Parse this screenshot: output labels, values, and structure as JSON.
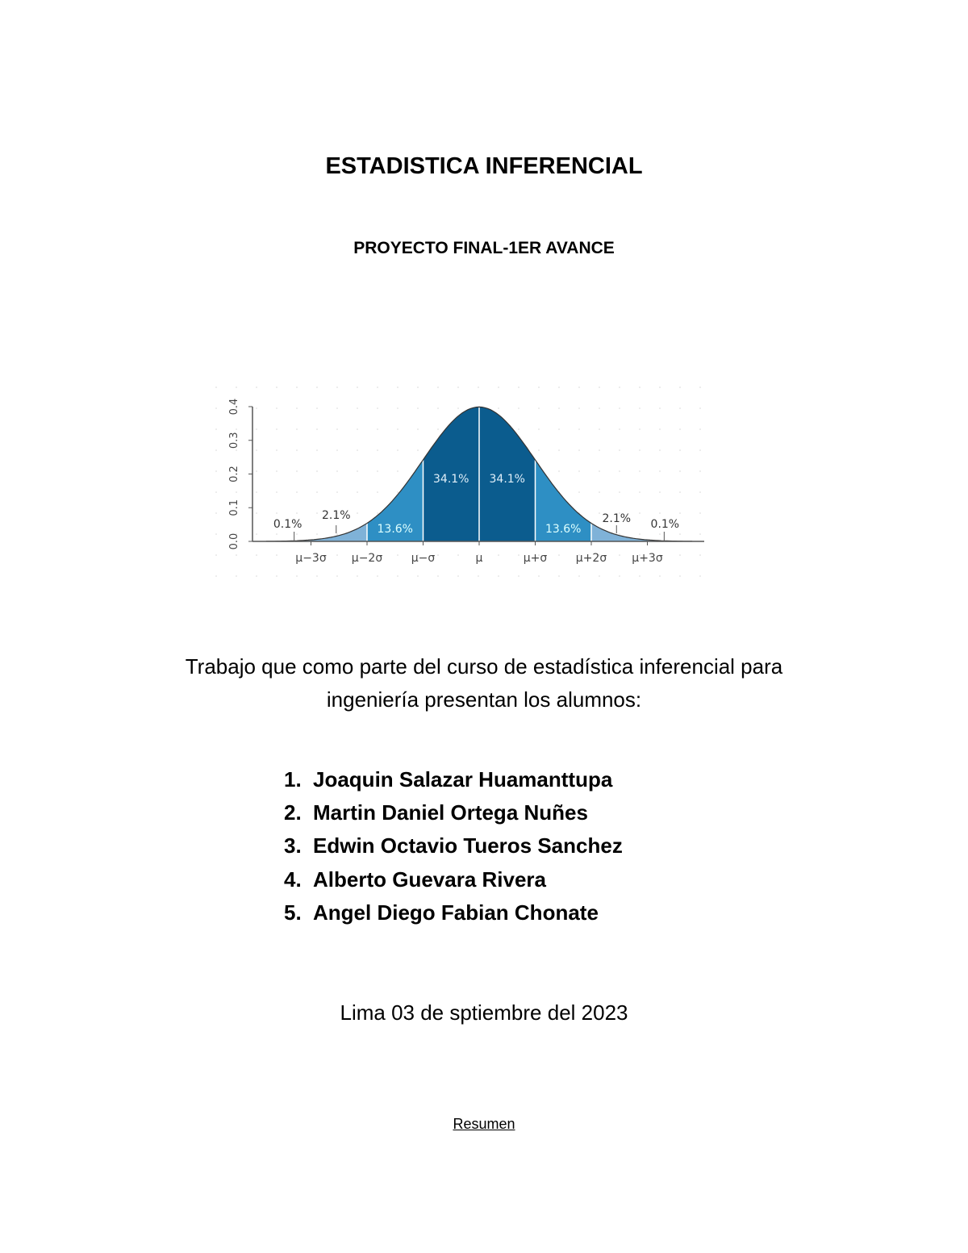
{
  "title": "ESTADISTICA INFERENCIAL",
  "subtitle": "PROYECTO FINAL-1ER AVANCE",
  "intro": [
    "Trabajo que como parte del curso de estadística inferencial para",
    "ingeniería presentan los alumnos:"
  ],
  "students": [
    {
      "num": "1.",
      "name": "Joaquin Salazar  Huamanttupa"
    },
    {
      "num": "2.",
      "name": "Martin Daniel Ortega Nuñes"
    },
    {
      "num": "3.",
      "name": "Edwin Octavio Tueros Sanchez"
    },
    {
      "num": "4.",
      "name": "Alberto Guevara Rivera"
    },
    {
      "num": "5.",
      "name": "Angel Diego Fabian Chonate"
    }
  ],
  "date": "Lima 03 de sptiembre del 2023",
  "link": "Resumen",
  "chart_data": {
    "type": "area",
    "ylim": [
      0,
      0.4
    ],
    "yticks": [
      "0.0",
      "0.1",
      "0.2",
      "0.3",
      "0.4"
    ],
    "xticks": [
      "μ−3σ",
      "μ−2σ",
      "μ−σ",
      "μ",
      "μ+σ",
      "μ+2σ",
      "μ+3σ"
    ],
    "regions": [
      {
        "from": -3,
        "to": -2,
        "label": "2.1%",
        "color": "#7fb2d8"
      },
      {
        "from": -2,
        "to": -1,
        "label": "13.6%",
        "color": "#2e8fc4"
      },
      {
        "from": -1,
        "to": 0,
        "label": "34.1%",
        "color": "#0b5c8e"
      },
      {
        "from": 0,
        "to": 1,
        "label": "34.1%",
        "color": "#0b5c8e"
      },
      {
        "from": 1,
        "to": 2,
        "label": "13.6%",
        "color": "#2e8fc4"
      },
      {
        "from": 2,
        "to": 3,
        "label": "2.1%",
        "color": "#7fb2d8"
      }
    ],
    "tail_labels": [
      "0.1%",
      "0.1%"
    ],
    "grid": "dotted"
  }
}
